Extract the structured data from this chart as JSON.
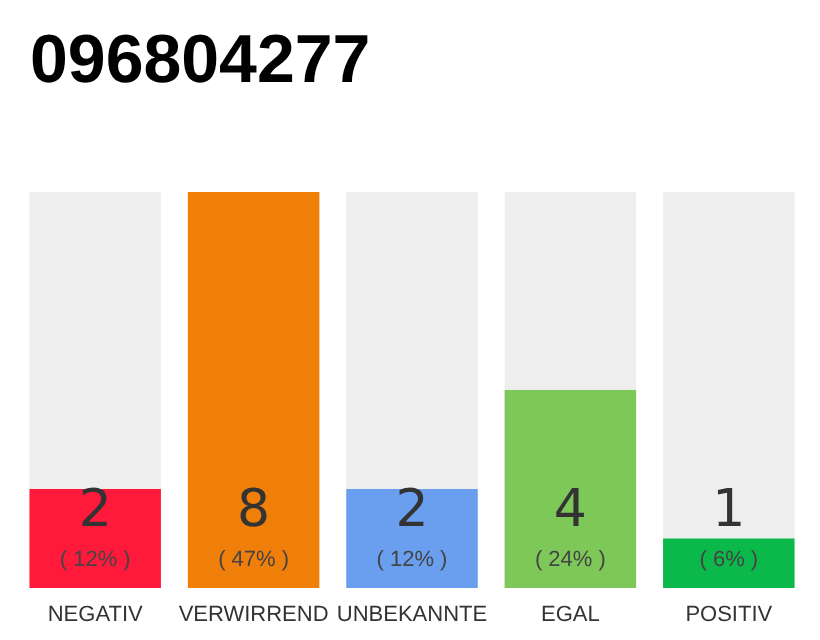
{
  "chart_data": {
    "type": "bar",
    "title": "096804277",
    "categories": [
      "NEGATIV",
      "VERWIRREND",
      "UNBEKANNTE",
      "EGAL",
      "POSITIV"
    ],
    "values": [
      2,
      8,
      2,
      4,
      1
    ],
    "colors": [
      "#ff1a3c",
      "#f07f0a",
      "#6a9ff0",
      "#7ec85a",
      "#0bb84a"
    ],
    "value_labels": [
      "2\n( 12% )",
      "8\n( 47% )",
      "2\n( 12% )",
      "4\n( 24% )",
      "1\n( 6% )"
    ],
    "ylim": [
      0,
      8
    ],
    "tick_labels": "x"
  }
}
